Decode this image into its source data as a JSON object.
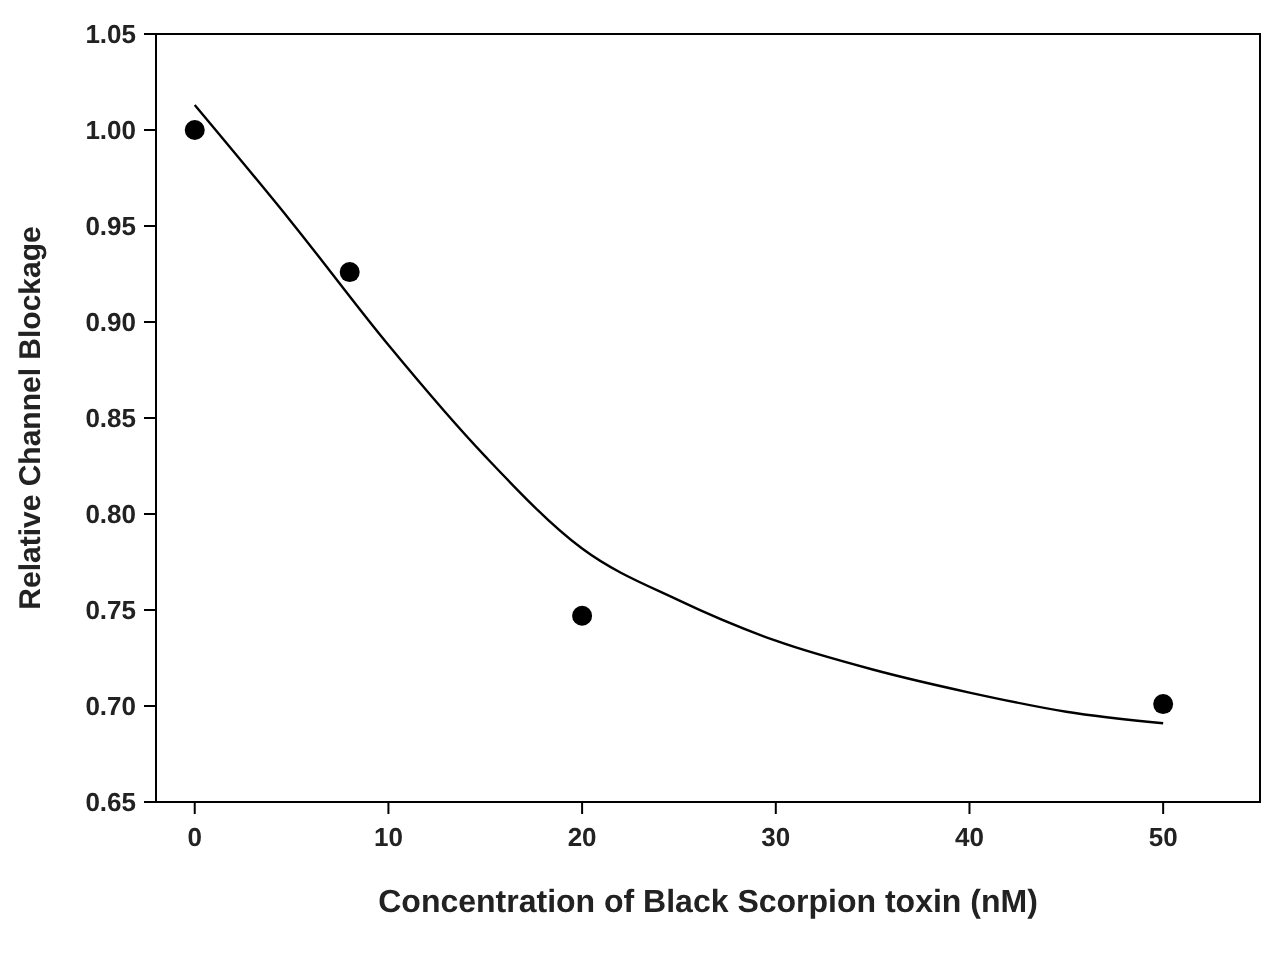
{
  "chart_data": {
    "type": "scatter",
    "xlabel": "Concentration of Black Scorpion toxin (nM)",
    "ylabel": "Relative Channel Blockage",
    "series": [
      {
        "color": "#000000",
        "marker": "circle",
        "x": [
          0,
          8,
          20,
          50
        ],
        "values": [
          1.0,
          0.926,
          0.747,
          0.701
        ]
      },
      {
        "type": "line",
        "color": "#000000",
        "marker": "none",
        "x": [
          0,
          5,
          10,
          15,
          20,
          25,
          30,
          35,
          40,
          45,
          50
        ],
        "values": [
          1.013,
          0.952,
          0.888,
          0.83,
          0.782,
          0.755,
          0.734,
          0.719,
          0.707,
          0.697,
          0.691
        ]
      }
    ],
    "xlim": [
      -2,
      55
    ],
    "ylim": [
      0.65,
      1.05
    ],
    "xticks": [
      0,
      10,
      20,
      30,
      40,
      50
    ],
    "yticks": [
      {
        "value": 0.65,
        "label": "0.65"
      },
      {
        "value": 0.7,
        "label": "0.70"
      },
      {
        "value": 0.75,
        "label": "0.75"
      },
      {
        "value": 0.8,
        "label": "0.80"
      },
      {
        "value": 0.85,
        "label": "0.85"
      },
      {
        "value": 0.9,
        "label": "0.90"
      },
      {
        "value": 0.95,
        "label": "0.95"
      },
      {
        "value": 1.0,
        "label": "1.00"
      },
      {
        "value": 1.05,
        "label": "1.05"
      }
    ],
    "grid": false
  }
}
